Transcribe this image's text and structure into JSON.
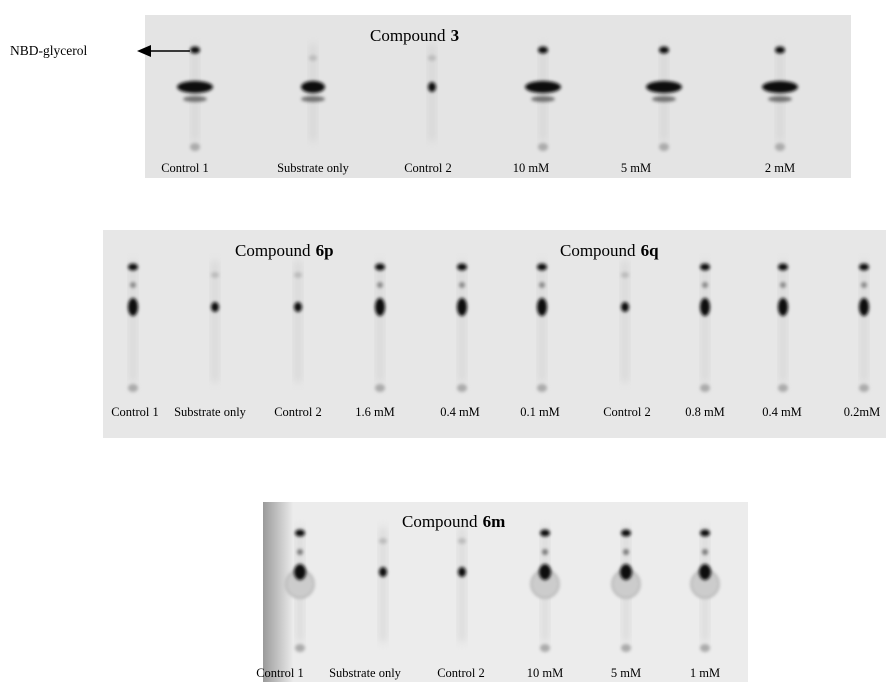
{
  "annotation": {
    "label": "NBD-glycerol"
  },
  "panels": [
    {
      "titles": [
        {
          "prefix": "Compound",
          "compound": "3"
        }
      ],
      "lanes": [
        "Control 1",
        "Substrate only",
        "Control 2",
        "10 mM",
        "5 mM",
        "2 mM"
      ]
    },
    {
      "titles": [
        {
          "prefix": "Compound",
          "compound": "6p"
        },
        {
          "prefix": "Compound",
          "compound": "6q"
        }
      ],
      "lanes": [
        "Control 1",
        "Substrate only",
        "Control 2",
        "1.6 mM",
        "0.4 mM",
        "0.1 mM",
        "Control 2",
        "0.8 mM",
        "0.4 mM",
        "0.2mM"
      ]
    },
    {
      "titles": [
        {
          "prefix": "Compound",
          "compound": "6m"
        }
      ],
      "lanes": [
        "Control 1",
        "Substrate only",
        "Control 2",
        "10 mM",
        "5 mM",
        "1 mM"
      ]
    }
  ]
}
